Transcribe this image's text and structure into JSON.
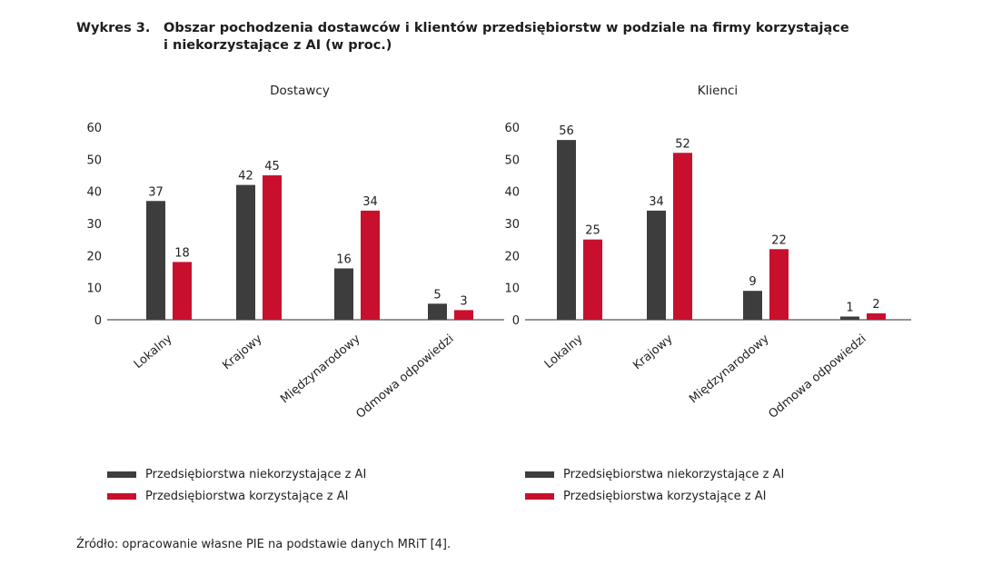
{
  "title": {
    "label": "Wykres 3.",
    "line1": "Obszar pochodzenia dostawców i klientów przedsiębiorstw w podziale na firmy korzystające",
    "line2": "i niekorzystające z AI (w proc.)"
  },
  "colors": {
    "series_non_ai": "#3d3d3d",
    "series_ai": "#c8102e",
    "axis": "#555555"
  },
  "chart_data": [
    {
      "type": "bar",
      "title": "Dostawcy",
      "categories": [
        "Lokalny",
        "Krajowy",
        "Międzynarodowy",
        "Odmowa odpowiedzi"
      ],
      "series": [
        {
          "name": "Przedsiębiorstwa niekorzystające z AI",
          "values": [
            37,
            42,
            16,
            5
          ]
        },
        {
          "name": "Przedsiębiorstwa korzystające z AI",
          "values": [
            18,
            45,
            34,
            3
          ]
        }
      ],
      "ylim": [
        0,
        60
      ],
      "yticks": [
        0,
        10,
        20,
        30,
        40,
        50,
        60
      ],
      "grid": false,
      "legend_position": "bottom"
    },
    {
      "type": "bar",
      "title": "Klienci",
      "categories": [
        "Lokalny",
        "Krajowy",
        "Międzynarodowy",
        "Odmowa odpowiedzi"
      ],
      "series": [
        {
          "name": "Przedsiębiorstwa niekorzystające z AI",
          "values": [
            56,
            34,
            9,
            1
          ]
        },
        {
          "name": "Przedsiębiorstwa korzystające z AI",
          "values": [
            25,
            52,
            22,
            2
          ]
        }
      ],
      "ylim": [
        0,
        60
      ],
      "yticks": [
        0,
        10,
        20,
        30,
        40,
        50,
        60
      ],
      "grid": false,
      "legend_position": "bottom"
    }
  ],
  "legend": [
    {
      "label": "Przedsiębiorstwa niekorzystające z AI"
    },
    {
      "label": "Przedsiębiorstwa korzystające z AI"
    }
  ],
  "source": "Źródło: opracowanie własne PIE na podstawie danych MRiT [4]."
}
